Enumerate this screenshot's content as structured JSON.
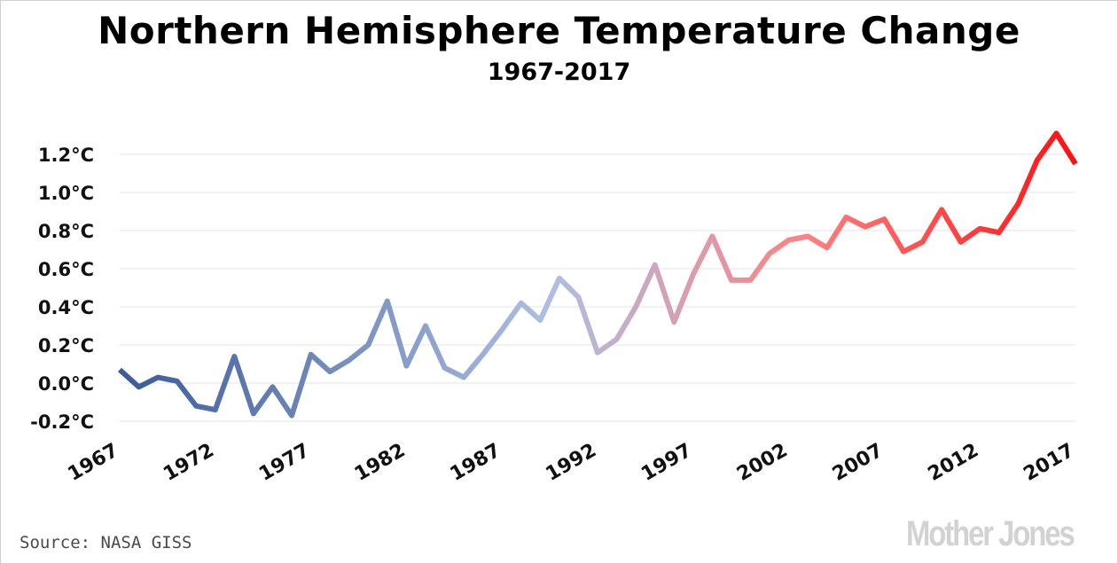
{
  "title": "Northern Hemisphere Temperature Change",
  "subtitle": "1967-2017",
  "source": "Source: NASA GISS",
  "logo": "Mother Jones",
  "colors": {
    "cold": "#3a5a99",
    "neutral": "#aebfe3",
    "warm": "#ff8080",
    "hot": "#ff1010",
    "grid": "#e6e6e6",
    "logo": "#d2d2d2"
  },
  "chart_data": {
    "type": "line",
    "title": "Northern Hemisphere Temperature Change",
    "subtitle": "1967-2017",
    "xlabel": "",
    "ylabel": "",
    "ylim": [
      -0.2,
      1.2
    ],
    "xlim": [
      1967,
      2017
    ],
    "grid": true,
    "legend": "none",
    "y_ticks": [
      "1.2°C",
      "1.0°C",
      "0.8°C",
      "0.6°C",
      "0.4°C",
      "0.2°C",
      "0.0°C",
      "-0.2°C"
    ],
    "y_tick_values": [
      1.2,
      1.0,
      0.8,
      0.6,
      0.4,
      0.2,
      0.0,
      -0.2
    ],
    "x_ticks": [
      "1967",
      "1972",
      "1977",
      "1982",
      "1987",
      "1992",
      "1997",
      "2002",
      "2007",
      "2012",
      "2017"
    ],
    "x_tick_values": [
      1967,
      1972,
      1977,
      1982,
      1987,
      1992,
      1997,
      2002,
      2007,
      2012,
      2017
    ],
    "x": [
      1967,
      1968,
      1969,
      1970,
      1971,
      1972,
      1973,
      1974,
      1975,
      1976,
      1977,
      1978,
      1979,
      1980,
      1981,
      1982,
      1983,
      1984,
      1985,
      1986,
      1987,
      1988,
      1989,
      1990,
      1991,
      1992,
      1993,
      1994,
      1995,
      1996,
      1997,
      1998,
      1999,
      2000,
      2001,
      2002,
      2003,
      2004,
      2005,
      2006,
      2007,
      2008,
      2009,
      2010,
      2011,
      2012,
      2013,
      2014,
      2015,
      2016,
      2017
    ],
    "series": [
      {
        "values": [
          0.07,
          -0.02,
          0.03,
          0.01,
          -0.12,
          -0.14,
          0.14,
          -0.16,
          -0.02,
          -0.17,
          0.15,
          0.06,
          0.12,
          0.2,
          0.43,
          0.09,
          0.3,
          0.08,
          0.03,
          0.15,
          0.28,
          0.42,
          0.33,
          0.55,
          0.45,
          0.16,
          0.23,
          0.4,
          0.62,
          0.32,
          0.57,
          0.77,
          0.54,
          0.54,
          0.68,
          0.75,
          0.77,
          0.71,
          0.87,
          0.82,
          0.86,
          0.69,
          0.74,
          0.91,
          0.74,
          0.81,
          0.79,
          0.94,
          1.17,
          1.31,
          1.15
        ]
      }
    ]
  }
}
